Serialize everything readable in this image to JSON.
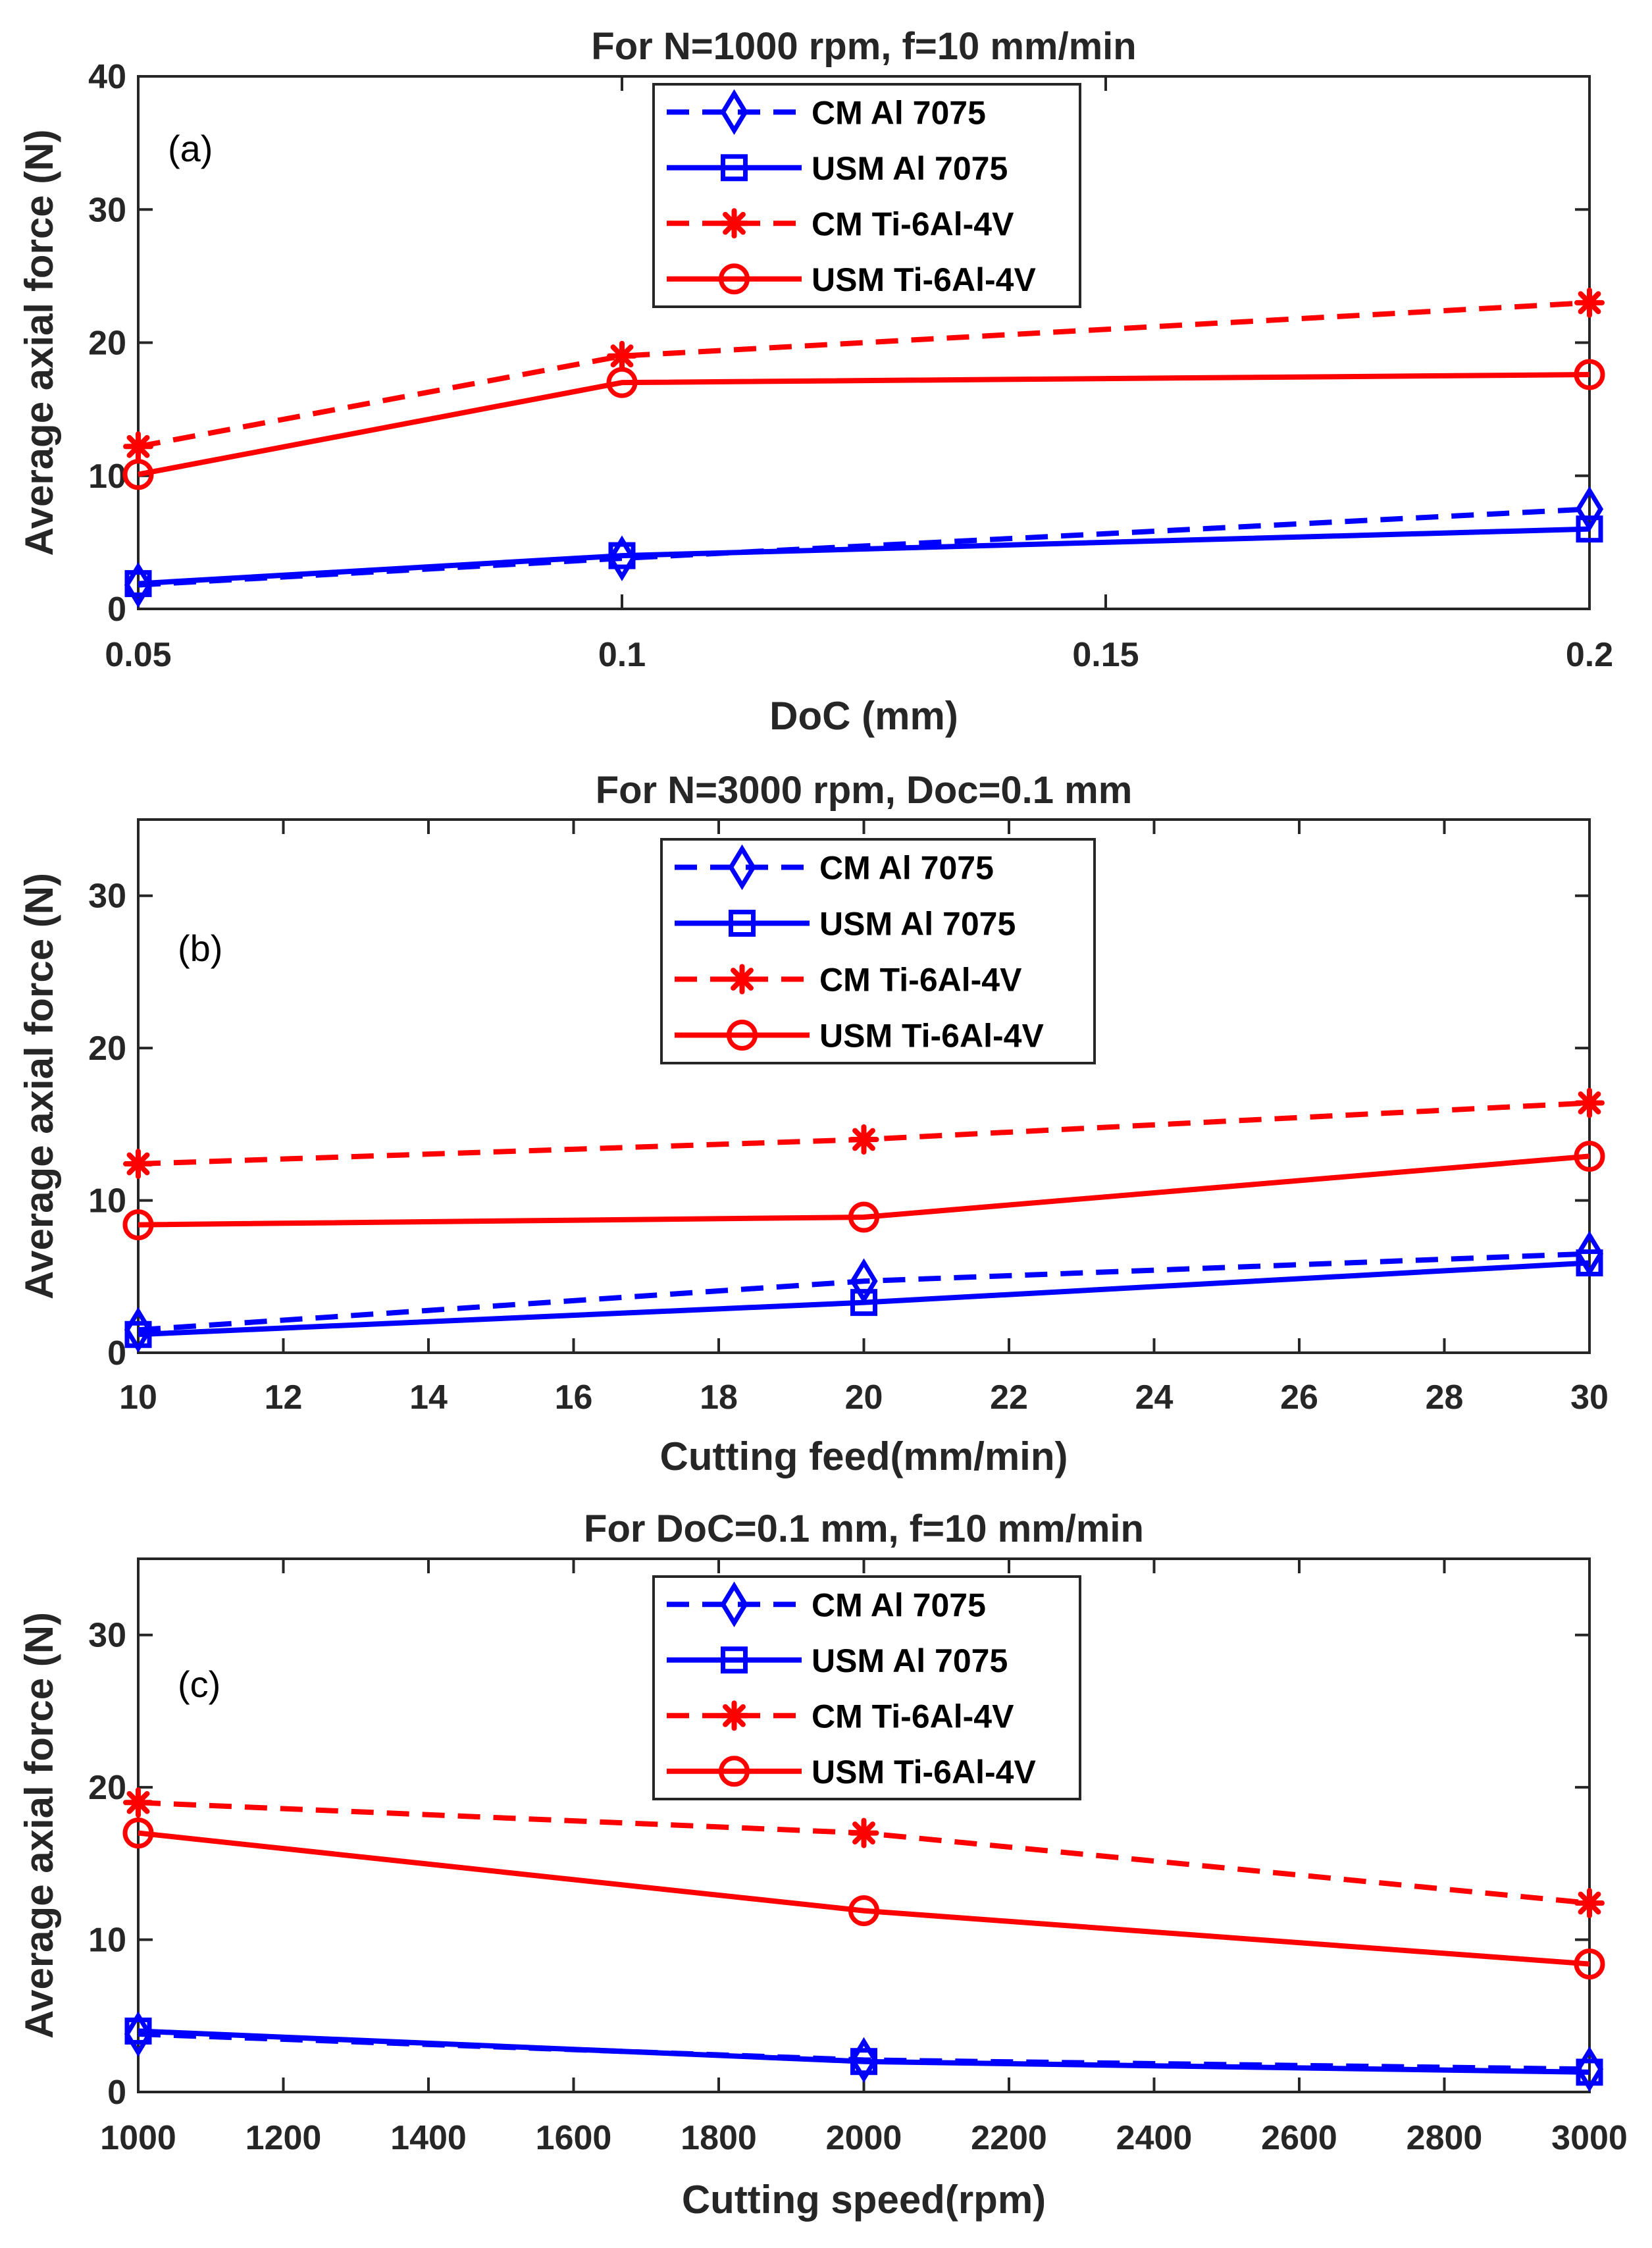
{
  "chart_data": [
    {
      "type": "line",
      "title": "For N=1000 rpm, f=10 mm/min",
      "panel_label": "(a)",
      "xlabel": "DoC (mm)",
      "ylabel": "Average axial force (N)",
      "xlim": [
        0.05,
        0.2
      ],
      "ylim": [
        0,
        40
      ],
      "xticks": [
        0.05,
        0.1,
        0.15,
        0.2
      ],
      "xtick_labels": [
        "0.05",
        "0.1",
        "0.15",
        "0.2"
      ],
      "yticks": [
        0,
        10,
        20,
        30,
        40
      ],
      "ytick_labels": [
        "0",
        "10",
        "20",
        "30",
        "40"
      ],
      "grid": false,
      "legend_position": "top-center",
      "x": [
        0.05,
        0.1,
        0.2
      ],
      "series": [
        {
          "name": "CM Al 7075",
          "values": [
            1.8,
            3.8,
            7.5
          ],
          "color": "#0000ff",
          "dash": "dashed",
          "marker": "diamond"
        },
        {
          "name": "USM Al 7075",
          "values": [
            1.9,
            4.0,
            6.0
          ],
          "color": "#0000ff",
          "dash": "solid",
          "marker": "square"
        },
        {
          "name": "CM Ti-6Al-4V",
          "values": [
            12.2,
            19.0,
            23.0
          ],
          "color": "#ff0000",
          "dash": "dashed",
          "marker": "asterisk"
        },
        {
          "name": "USM Ti-6Al-4V",
          "values": [
            10.1,
            17.0,
            17.6
          ],
          "color": "#ff0000",
          "dash": "solid",
          "marker": "circle"
        }
      ]
    },
    {
      "type": "line",
      "title": "For N=3000 rpm, Doc=0.1 mm",
      "panel_label": "(b)",
      "xlabel": "Cutting feed(mm/min)",
      "ylabel": "Average axial force (N)",
      "xlim": [
        10,
        30
      ],
      "ylim": [
        0,
        35
      ],
      "xticks": [
        10,
        12,
        14,
        16,
        18,
        20,
        22,
        24,
        26,
        28,
        30
      ],
      "xtick_labels": [
        "10",
        "12",
        "14",
        "16",
        "18",
        "20",
        "22",
        "24",
        "26",
        "28",
        "30"
      ],
      "yticks": [
        0,
        10,
        20,
        30
      ],
      "ytick_labels": [
        "0",
        "10",
        "20",
        "30"
      ],
      "grid": false,
      "legend_position": "top-center",
      "x": [
        10,
        20,
        30
      ],
      "series": [
        {
          "name": "CM Al 7075",
          "values": [
            1.5,
            4.7,
            6.5
          ],
          "color": "#0000ff",
          "dash": "dashed",
          "marker": "diamond"
        },
        {
          "name": "USM Al 7075",
          "values": [
            1.2,
            3.3,
            5.9
          ],
          "color": "#0000ff",
          "dash": "solid",
          "marker": "square"
        },
        {
          "name": "CM Ti-6Al-4V",
          "values": [
            12.4,
            14.0,
            16.4
          ],
          "color": "#ff0000",
          "dash": "dashed",
          "marker": "asterisk"
        },
        {
          "name": "USM Ti-6Al-4V",
          "values": [
            8.4,
            8.9,
            12.9
          ],
          "color": "#ff0000",
          "dash": "solid",
          "marker": "circle"
        }
      ]
    },
    {
      "type": "line",
      "title": "For DoC=0.1 mm, f=10 mm/min",
      "panel_label": "(c)",
      "xlabel": "Cutting speed(rpm)",
      "ylabel": "Average axial force (N)",
      "xlim": [
        1000,
        3000
      ],
      "ylim": [
        0,
        35
      ],
      "xticks": [
        1000,
        1200,
        1400,
        1600,
        1800,
        2000,
        2200,
        2400,
        2600,
        2800,
        3000
      ],
      "xtick_labels": [
        "1000",
        "1200",
        "1400",
        "1600",
        "1800",
        "2000",
        "2200",
        "2400",
        "2600",
        "2800",
        "3000"
      ],
      "yticks": [
        0,
        10,
        20,
        30
      ],
      "ytick_labels": [
        "0",
        "10",
        "20",
        "30"
      ],
      "grid": false,
      "legend_position": "top-center",
      "x": [
        1000,
        2000,
        3000
      ],
      "series": [
        {
          "name": "CM Al 7075",
          "values": [
            3.8,
            2.1,
            1.5
          ],
          "color": "#0000ff",
          "dash": "dashed",
          "marker": "diamond"
        },
        {
          "name": "USM Al 7075",
          "values": [
            4.0,
            2.0,
            1.3
          ],
          "color": "#0000ff",
          "dash": "solid",
          "marker": "square"
        },
        {
          "name": "CM Ti-6Al-4V",
          "values": [
            19.0,
            17.0,
            12.4
          ],
          "color": "#ff0000",
          "dash": "dashed",
          "marker": "asterisk"
        },
        {
          "name": "USM Ti-6Al-4V",
          "values": [
            17.0,
            11.9,
            8.4
          ],
          "color": "#ff0000",
          "dash": "solid",
          "marker": "circle"
        }
      ]
    }
  ]
}
